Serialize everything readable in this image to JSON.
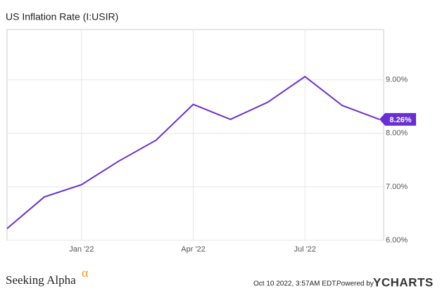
{
  "chart_data": {
    "type": "line",
    "title": "US Inflation Rate (I:USIR)",
    "categories": [
      null,
      null,
      "Jan '22",
      null,
      null,
      "Apr '22",
      null,
      null,
      "Jul '22",
      null,
      null
    ],
    "series": [
      {
        "name": "US Inflation Rate",
        "color": "#6a2fd4",
        "values": [
          6.22,
          6.81,
          7.04,
          7.48,
          7.87,
          8.54,
          8.26,
          8.58,
          9.06,
          8.52,
          8.26
        ],
        "value_labels": [
          null,
          null,
          null,
          null,
          null,
          null,
          null,
          null,
          null,
          null,
          "8.26%"
        ]
      }
    ],
    "ylim": [
      6,
      9.94
    ],
    "yticks": [
      {
        "value": 6,
        "label": "6.00%"
      },
      {
        "value": 7,
        "label": "7.00%"
      },
      {
        "value": 8,
        "label": "8.00%"
      },
      {
        "value": 9,
        "label": "9.00%"
      }
    ],
    "grid": true
  },
  "footer": {
    "brand": "Seeking Alpha",
    "brand_symbol": "α",
    "timestamp": "Oct 10 2022, 3:57AM EDT.",
    "powered_by": "Powered by",
    "logo": "YCHARTS"
  }
}
